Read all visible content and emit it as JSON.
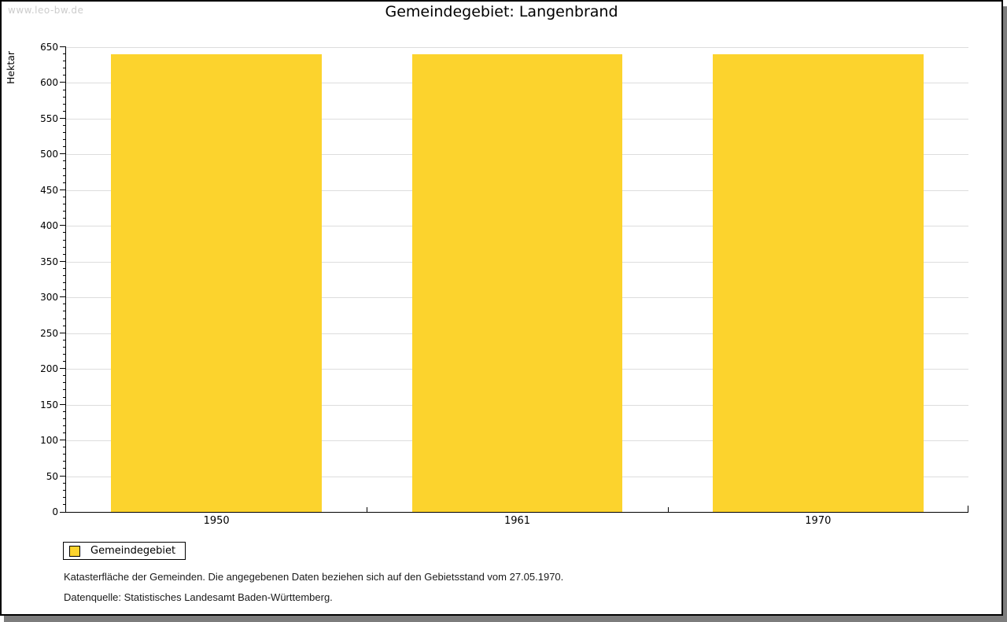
{
  "watermark": "www.leo-bw.de",
  "chart_data": {
    "type": "bar",
    "title": "Gemeindegebiet: Langenbrand",
    "xlabel": "",
    "ylabel": "Hektar",
    "categories": [
      "1950",
      "1961",
      "1970"
    ],
    "series": [
      {
        "name": "Gemeindegebiet",
        "values": [
          640,
          640,
          640
        ]
      }
    ],
    "ylim": [
      0,
      650
    ],
    "y_major_step": 50,
    "y_minor_step": 10,
    "grid": true,
    "legend_position": "bottom-left"
  },
  "legend": {
    "items": [
      {
        "label": "Gemeindegebiet",
        "color": "#fcd32d"
      }
    ]
  },
  "footnotes": [
    "Katasterfläche der Gemeinden. Die angegebenen Daten beziehen sich auf den Gebietsstand vom 27.05.1970.",
    "Datenquelle: Statistisches Landesamt Baden-Württemberg."
  ],
  "colors": {
    "bar": "#fcd32d",
    "gridline": "#dddddd",
    "axis": "#000000",
    "watermark_text": "#cccccc",
    "shadow": "#7d7d7d"
  }
}
